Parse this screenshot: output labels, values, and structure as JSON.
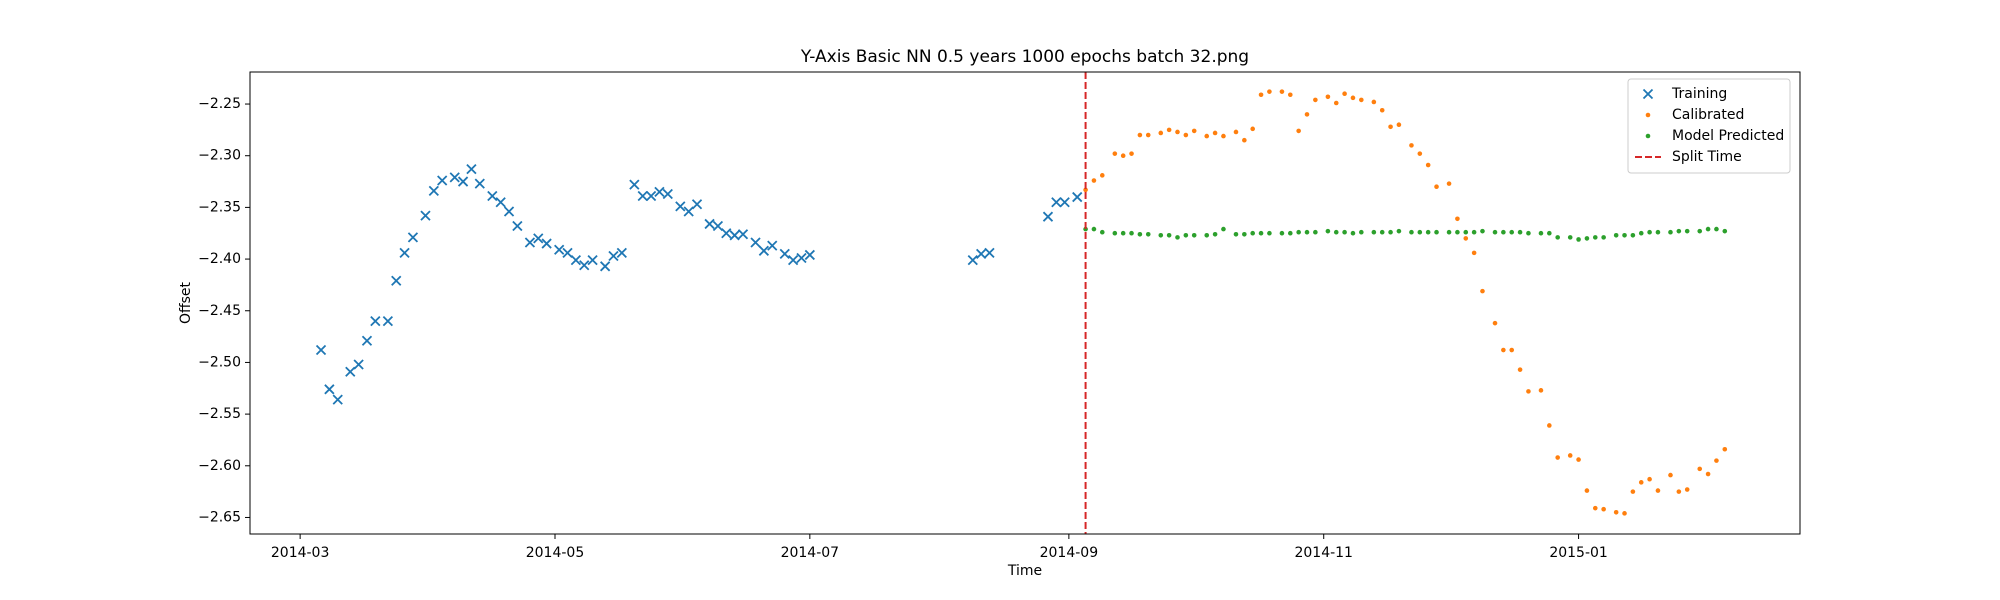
{
  "chart_data": {
    "type": "scatter",
    "title": "Y-Axis Basic NN 0.5 years 1000 epochs batch 32.png",
    "x_label": "Time",
    "y_label": "Offset",
    "xlim": [
      16118,
      16489
    ],
    "ylim": [
      -2.666,
      -2.219
    ],
    "xticks": [
      {
        "value": 16130,
        "label": "2014-03"
      },
      {
        "value": 16191,
        "label": "2014-05"
      },
      {
        "value": 16252,
        "label": "2014-07"
      },
      {
        "value": 16314,
        "label": "2014-09"
      },
      {
        "value": 16375,
        "label": "2014-11"
      },
      {
        "value": 16436,
        "label": "2015-01"
      }
    ],
    "yticks": [
      {
        "value": -2.65,
        "label": "−2.65"
      },
      {
        "value": -2.6,
        "label": "−2.60"
      },
      {
        "value": -2.55,
        "label": "−2.55"
      },
      {
        "value": -2.5,
        "label": "−2.50"
      },
      {
        "value": -2.45,
        "label": "−2.45"
      },
      {
        "value": -2.4,
        "label": "−2.40"
      },
      {
        "value": -2.35,
        "label": "−2.35"
      },
      {
        "value": -2.3,
        "label": "−2.30"
      },
      {
        "value": -2.25,
        "label": "−2.25"
      }
    ],
    "legend": "upper right",
    "series": [
      {
        "name": "Training",
        "color": "#1f77b4",
        "marker": "x",
        "x": [
          16135,
          16137,
          16139,
          16142,
          16144,
          16146,
          16148,
          16151,
          16153,
          16155,
          16157,
          16160,
          16162,
          16164,
          16167,
          16169,
          16171,
          16173,
          16176,
          16178,
          16180,
          16182,
          16185,
          16187,
          16189,
          16192,
          16194,
          16196,
          16198,
          16200,
          16203,
          16205,
          16207,
          16210,
          16212,
          16214,
          16216,
          16218,
          16221,
          16223,
          16225,
          16228,
          16230,
          16232,
          16234,
          16236,
          16239,
          16241,
          16243,
          16246,
          16248,
          16250,
          16252,
          16291,
          16293,
          16295,
          16309,
          16311,
          16313,
          16316
        ],
        "values": [
          -2.488,
          -2.526,
          -2.536,
          -2.509,
          -2.502,
          -2.479,
          -2.46,
          -2.46,
          -2.421,
          -2.394,
          -2.379,
          -2.358,
          -2.334,
          -2.324,
          -2.321,
          -2.325,
          -2.313,
          -2.327,
          -2.339,
          -2.345,
          -2.354,
          -2.368,
          -2.384,
          -2.38,
          -2.385,
          -2.391,
          -2.394,
          -2.401,
          -2.406,
          -2.401,
          -2.407,
          -2.397,
          -2.394,
          -2.328,
          -2.339,
          -2.339,
          -2.335,
          -2.337,
          -2.349,
          -2.354,
          -2.347,
          -2.366,
          -2.368,
          -2.375,
          -2.377,
          -2.376,
          -2.384,
          -2.392,
          -2.387,
          -2.395,
          -2.401,
          -2.399,
          -2.396,
          -2.401,
          -2.395,
          -2.394,
          -2.359,
          -2.345,
          -2.345,
          -2.34
        ]
      },
      {
        "name": "Calibrated",
        "color": "#ff7f0e",
        "marker": "o",
        "x": [
          16318,
          16320,
          16322,
          16325,
          16327,
          16329,
          16331,
          16333,
          16336,
          16338,
          16340,
          16342,
          16344,
          16347,
          16349,
          16351,
          16354,
          16356,
          16358,
          16360,
          16362,
          16365,
          16367,
          16369,
          16371,
          16373,
          16376,
          16378,
          16380,
          16382,
          16384,
          16387,
          16389,
          16391,
          16393,
          16396,
          16398,
          16400,
          16402,
          16405,
          16407,
          16409,
          16411,
          16413,
          16416,
          16418,
          16420,
          16422,
          16424,
          16427,
          16429,
          16431,
          16434,
          16436,
          16438,
          16440,
          16442,
          16445,
          16447,
          16449,
          16451,
          16453,
          16455,
          16458,
          16460,
          16462,
          16465,
          16467,
          16469,
          16471
        ],
        "values": [
          -2.333,
          -2.324,
          -2.319,
          -2.298,
          -2.3,
          -2.298,
          -2.28,
          -2.28,
          -2.278,
          -2.275,
          -2.277,
          -2.28,
          -2.276,
          -2.281,
          -2.278,
          -2.281,
          -2.277,
          -2.285,
          -2.274,
          -2.241,
          -2.238,
          -2.238,
          -2.241,
          -2.276,
          -2.26,
          -2.246,
          -2.243,
          -2.249,
          -2.24,
          -2.244,
          -2.246,
          -2.248,
          -2.256,
          -2.272,
          -2.27,
          -2.29,
          -2.298,
          -2.309,
          -2.33,
          -2.327,
          -2.361,
          -2.38,
          -2.394,
          -2.431,
          -2.462,
          -2.488,
          -2.488,
          -2.507,
          -2.528,
          -2.527,
          -2.561,
          -2.592,
          -2.59,
          -2.594,
          -2.624,
          -2.641,
          -2.642,
          -2.645,
          -2.646,
          -2.625,
          -2.616,
          -2.613,
          -2.624,
          -2.609,
          -2.625,
          -2.623,
          -2.603,
          -2.608,
          -2.595,
          -2.584
        ]
      },
      {
        "name": "Model Predicted",
        "color": "#2ca02c",
        "marker": "o",
        "x": [
          16318,
          16320,
          16322,
          16325,
          16327,
          16329,
          16331,
          16333,
          16336,
          16338,
          16340,
          16342,
          16344,
          16347,
          16349,
          16351,
          16354,
          16356,
          16358,
          16360,
          16362,
          16365,
          16367,
          16369,
          16371,
          16373,
          16376,
          16378,
          16380,
          16382,
          16384,
          16387,
          16389,
          16391,
          16393,
          16396,
          16398,
          16400,
          16402,
          16405,
          16407,
          16409,
          16411,
          16413,
          16416,
          16418,
          16420,
          16422,
          16424,
          16427,
          16429,
          16431,
          16434,
          16436,
          16438,
          16440,
          16442,
          16445,
          16447,
          16449,
          16451,
          16453,
          16455,
          16458,
          16460,
          16462,
          16465,
          16467,
          16469,
          16471
        ],
        "values": [
          -2.371,
          -2.371,
          -2.374,
          -2.375,
          -2.375,
          -2.375,
          -2.376,
          -2.376,
          -2.377,
          -2.377,
          -2.379,
          -2.377,
          -2.377,
          -2.377,
          -2.376,
          -2.371,
          -2.376,
          -2.376,
          -2.375,
          -2.375,
          -2.375,
          -2.375,
          -2.375,
          -2.374,
          -2.374,
          -2.374,
          -2.373,
          -2.374,
          -2.374,
          -2.375,
          -2.374,
          -2.374,
          -2.374,
          -2.374,
          -2.373,
          -2.374,
          -2.374,
          -2.374,
          -2.374,
          -2.374,
          -2.374,
          -2.374,
          -2.374,
          -2.373,
          -2.374,
          -2.374,
          -2.374,
          -2.374,
          -2.375,
          -2.375,
          -2.375,
          -2.379,
          -2.379,
          -2.381,
          -2.38,
          -2.379,
          -2.379,
          -2.377,
          -2.377,
          -2.377,
          -2.375,
          -2.374,
          -2.374,
          -2.374,
          -2.373,
          -2.373,
          -2.373,
          -2.371,
          -2.371,
          -2.373
        ]
      }
    ],
    "vlines": [
      {
        "name": "Split Time",
        "x": 16318,
        "color": "#d62728",
        "style": "dashed"
      }
    ]
  }
}
